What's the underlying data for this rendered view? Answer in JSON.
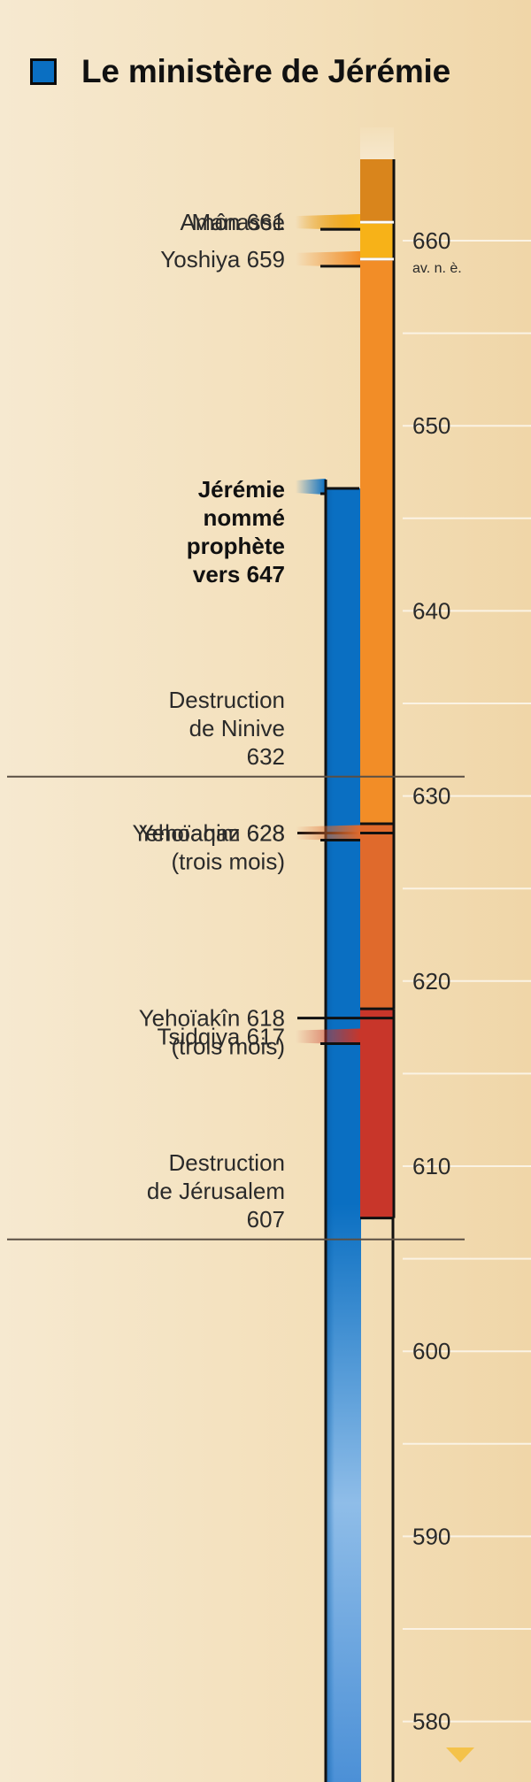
{
  "title": "Le ministère de Jérémie",
  "colors": {
    "ministry": "#0a6fc2",
    "manasse": "#d9851c",
    "amon": "#f7b218",
    "yoshiya": "#f28d27",
    "yehoiaqim": "#e06a2c",
    "tsidqiya": "#c8362a",
    "divider": "#5a4f44"
  },
  "chart_data": {
    "type": "timeline",
    "axis": {
      "range": [
        579,
        666
      ],
      "ticks": [
        660,
        650,
        640,
        630,
        620,
        610,
        600,
        590,
        580
      ],
      "tick_sublabel": "av. n. è."
    },
    "reigns": [
      {
        "name": "Manassé",
        "start": 666,
        "end": 661,
        "color": "#d9851c"
      },
      {
        "name": "Amôn",
        "start": 661,
        "end": 659,
        "color": "#f7b218"
      },
      {
        "name": "Yoshiya",
        "start": 659,
        "end": 628.5,
        "color": "#f28d27"
      },
      {
        "name": "Yehoïaqim",
        "start": 628.5,
        "end": 618.5,
        "color": "#e06a2c"
      },
      {
        "name": "Tsidqiya",
        "start": 618.5,
        "end": 607.2,
        "color": "#c8362a"
      }
    ],
    "ministry": {
      "label": "Jérémie nommé prophète vers 647",
      "start": 647,
      "end": 579
    },
    "events": [
      {
        "lines": [
          "Manassé"
        ],
        "year": 661,
        "bold": false,
        "marker": "wedge",
        "color": "#d9851c"
      },
      {
        "lines": [
          "Amôn 661"
        ],
        "year": 661,
        "bold": false,
        "marker": "wedge",
        "color": "#f7b218"
      },
      {
        "lines": [
          "Yoshiya 659"
        ],
        "year": 659,
        "bold": false,
        "marker": "wedge",
        "color": "#f28d27"
      },
      {
        "lines": [
          "Jérémie",
          "nommé",
          "prophète",
          "vers 647"
        ],
        "year": 647,
        "bold": true,
        "marker": "wedge",
        "color": "#0a6fc2"
      },
      {
        "lines": [
          "Destruction",
          "de Ninive",
          "632"
        ],
        "year": 632,
        "bold": false,
        "marker": "divider"
      },
      {
        "lines": [
          "Yehoahaz 628",
          "(trois mois)"
        ],
        "year": 628,
        "bold": false,
        "marker": "line"
      },
      {
        "lines": [
          "Yehoïaqim 628"
        ],
        "year": 628,
        "bold": false,
        "marker": "wedge",
        "color": "#e06a2c"
      },
      {
        "lines": [
          "Yehoïakîn 618",
          "(trois mois)"
        ],
        "year": 618,
        "bold": false,
        "marker": "line"
      },
      {
        "lines": [
          "Tsidqiya 617"
        ],
        "year": 617,
        "bold": false,
        "marker": "wedge",
        "color": "#c8362a"
      },
      {
        "lines": [
          "Destruction",
          "de Jérusalem",
          "607"
        ],
        "year": 607,
        "bold": false,
        "marker": "divider"
      }
    ]
  }
}
